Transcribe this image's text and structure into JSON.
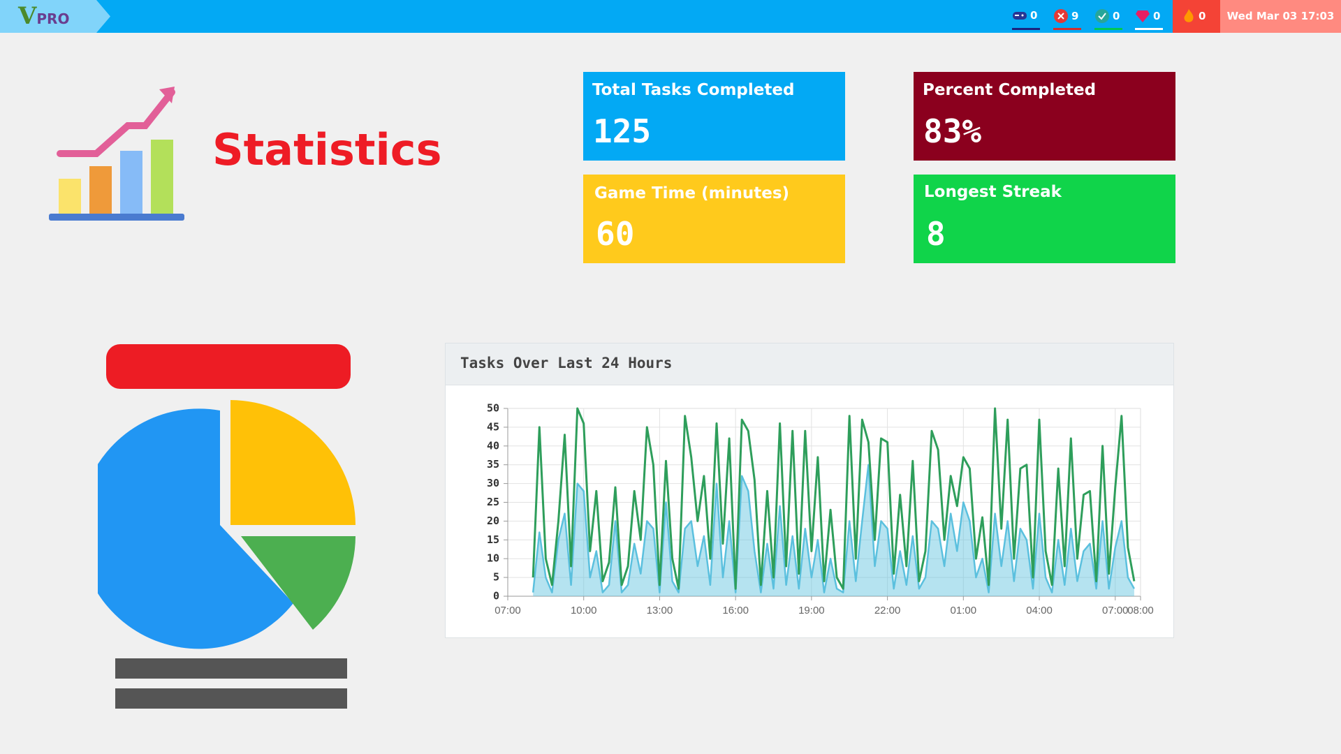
{
  "header": {
    "logo_mark": "V",
    "logo_text": "PRO",
    "counters": [
      0,
      9,
      0,
      0,
      0
    ],
    "datetime": "Wed Mar 03 17:03"
  },
  "page_title": "Statistics",
  "cards": [
    {
      "label": "Total Tasks Completed",
      "value": 125
    },
    {
      "label": "Percent Completed",
      "value": "83%"
    },
    {
      "label": "Game Time (minutes)",
      "value": 60
    },
    {
      "label": "Longest Streak",
      "value": 8
    }
  ],
  "chart_data": {
    "type": "line",
    "title": "Tasks Over Last 24 Hours",
    "x": [
      1.0,
      1.25,
      1.5,
      1.75,
      2.0,
      2.25,
      2.5,
      2.75,
      3.0,
      3.25,
      3.5,
      3.75,
      4.0,
      4.25,
      4.5,
      4.75,
      5.0,
      5.25,
      5.5,
      5.75,
      6.0,
      6.25,
      6.5,
      6.75,
      7.0,
      7.25,
      7.5,
      7.75,
      8.0,
      8.25,
      8.5,
      8.75,
      9.0,
      9.25,
      9.5,
      9.75,
      10.0,
      10.25,
      10.5,
      10.75,
      11.0,
      11.25,
      11.5,
      11.75,
      12.0,
      12.25,
      12.5,
      12.75,
      13.0,
      13.25,
      13.5,
      13.75,
      14.0,
      14.25,
      14.5,
      14.75,
      15.0,
      15.25,
      15.5,
      15.75,
      16.0,
      16.25,
      16.5,
      16.75,
      17.0,
      17.25,
      17.5,
      17.75,
      18.0,
      18.25,
      18.5,
      18.75,
      19.0,
      19.25,
      19.5,
      19.75,
      20.0,
      20.25,
      20.5,
      20.75,
      21.0,
      21.25,
      21.5,
      21.75,
      22.0,
      22.25,
      22.5,
      22.75,
      23.0,
      23.25,
      23.5,
      23.75,
      24.0,
      24.25,
      24.5,
      24.75
    ],
    "series": [
      {
        "color": "#2e9e5b",
        "values": [
          5,
          45,
          10,
          3,
          20,
          43,
          8,
          50,
          46,
          12,
          28,
          4,
          9,
          29,
          3,
          8,
          28,
          15,
          45,
          35,
          3,
          36,
          10,
          2,
          48,
          37,
          20,
          32,
          10,
          46,
          14,
          42,
          2,
          47,
          44,
          31,
          3,
          28,
          5,
          46,
          8,
          44,
          6,
          44,
          12,
          37,
          4,
          23,
          5,
          2,
          48,
          10,
          47,
          41,
          15,
          42,
          41,
          6,
          27,
          8,
          36,
          4,
          12,
          44,
          39,
          15,
          32,
          24,
          37,
          34,
          10,
          21,
          3,
          50,
          18,
          47,
          10,
          34,
          35,
          5,
          47,
          12,
          3,
          34,
          8,
          42,
          10,
          27,
          28,
          4,
          40,
          6,
          29,
          48,
          13,
          4
        ]
      },
      {
        "color": "#5bc0de",
        "area": true,
        "values": [
          1,
          17,
          5,
          1,
          15,
          22,
          3,
          30,
          28,
          5,
          12,
          1,
          3,
          20,
          1,
          3,
          14,
          6,
          20,
          18,
          1,
          25,
          4,
          1,
          18,
          20,
          8,
          16,
          3,
          30,
          5,
          20,
          1,
          32,
          28,
          12,
          1,
          14,
          2,
          24,
          3,
          16,
          2,
          18,
          5,
          15,
          1,
          10,
          2,
          1,
          20,
          4,
          20,
          35,
          8,
          20,
          18,
          2,
          12,
          3,
          16,
          2,
          5,
          20,
          18,
          8,
          22,
          12,
          25,
          20,
          5,
          10,
          1,
          22,
          8,
          20,
          4,
          18,
          15,
          2,
          22,
          5,
          1,
          15,
          3,
          18,
          4,
          12,
          14,
          2,
          20,
          2,
          13,
          20,
          5,
          2
        ]
      }
    ],
    "xlim": [
      0,
      25
    ],
    "xticks": [
      {
        "value": 0,
        "label": "07:00"
      },
      {
        "value": 3,
        "label": "10:00"
      },
      {
        "value": 6,
        "label": "13:00"
      },
      {
        "value": 9,
        "label": "16:00"
      },
      {
        "value": 12,
        "label": "19:00"
      },
      {
        "value": 15,
        "label": "22:00"
      },
      {
        "value": 18,
        "label": "01:00"
      },
      {
        "value": 21,
        "label": "04:00"
      },
      {
        "value": 24,
        "label": "07:00"
      },
      {
        "value": 25,
        "label": "08:00"
      }
    ],
    "ylim": [
      0,
      50
    ],
    "yticks": [
      0,
      5,
      10,
      15,
      20,
      25,
      30,
      35,
      40,
      45,
      50
    ],
    "grid": true
  }
}
